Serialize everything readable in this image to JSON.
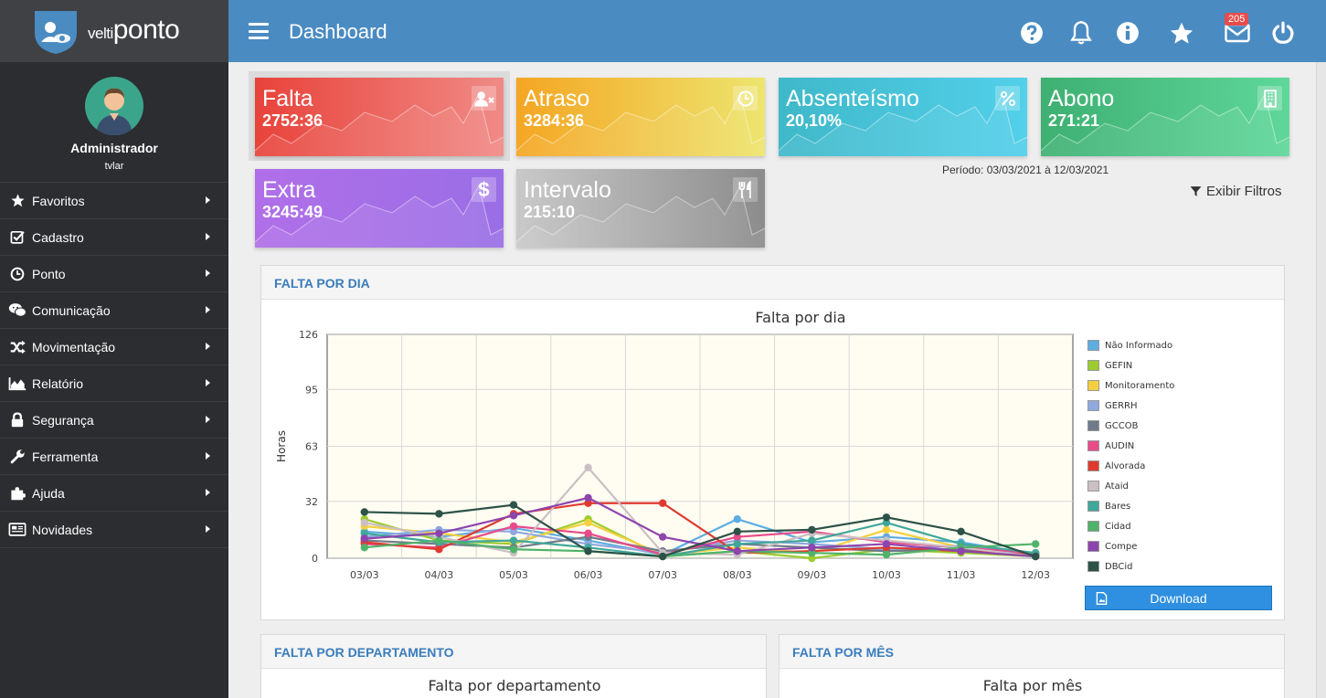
{
  "brand": {
    "prefix": "velti",
    "name": "ponto"
  },
  "user": {
    "name": "Administrador",
    "login": "tvlar"
  },
  "sidebar": {
    "items": [
      {
        "label": "Favoritos",
        "icon": "star-icon"
      },
      {
        "label": "Cadastro",
        "icon": "checkbox-icon"
      },
      {
        "label": "Ponto",
        "icon": "clock-icon"
      },
      {
        "label": "Comunicação",
        "icon": "chat-icon"
      },
      {
        "label": "Movimentação",
        "icon": "shuffle-icon"
      },
      {
        "label": "Relatório",
        "icon": "area-chart-icon"
      },
      {
        "label": "Segurança",
        "icon": "lock-icon"
      },
      {
        "label": "Ferramenta",
        "icon": "wrench-icon"
      },
      {
        "label": "Ajuda",
        "icon": "puzzle-icon"
      },
      {
        "label": "Novidades",
        "icon": "newspaper-icon"
      }
    ]
  },
  "header": {
    "title": "Dashboard",
    "mail_count": "205",
    "icons": [
      "question-icon",
      "bell-icon",
      "info-icon",
      "star-icon",
      "mail-icon",
      "power-icon"
    ]
  },
  "cards": [
    {
      "title": "Falta",
      "value": "2752:36",
      "icon": "user-times-icon",
      "color_from": "#e8433b",
      "color_to": "#f08a86"
    },
    {
      "title": "Atraso",
      "value": "3284:36",
      "icon": "clock-icon",
      "color_from": "#f4a623",
      "color_to": "#ede56e"
    },
    {
      "title": "Absenteísmo",
      "value": "20,10%",
      "icon": "percent-icon",
      "color_from": "#3fb8c9",
      "color_to": "#52d0ea"
    },
    {
      "title": "Abono",
      "value": "271:21",
      "icon": "building-icon",
      "color_from": "#3db072",
      "color_to": "#5fd79a"
    },
    {
      "title": "Extra",
      "value": "3245:49",
      "icon": "dollar-icon",
      "color_from": "#b06fe8",
      "color_to": "#9a6ee6"
    },
    {
      "title": "Intervalo",
      "value": "215:10",
      "icon": "cutlery-icon",
      "color_from": "#c9c9c9",
      "color_to": "#8c8c8c"
    }
  ],
  "periodo": "Período: 03/03/2021 à 12/03/2021",
  "filters_label": "Exibir Filtros",
  "panels": {
    "dia": {
      "heading": "FALTA POR DIA",
      "download": "Download"
    },
    "departamento": {
      "heading": "FALTA POR DEPARTAMENTO",
      "chart_title": "Falta por departamento"
    },
    "mes": {
      "heading": "FALTA POR MÊS",
      "chart_title": "Falta por mês"
    }
  },
  "chart_data": {
    "type": "line",
    "title": "Falta por dia",
    "ylabel": "Horas",
    "xlabel": "",
    "ylim": [
      0,
      126
    ],
    "yticks": [
      0,
      32,
      63,
      95,
      126
    ],
    "x": [
      "03/03",
      "04/03",
      "05/03",
      "06/03",
      "07/03",
      "08/03",
      "09/03",
      "10/03",
      "11/03",
      "12/03"
    ],
    "series": [
      {
        "name": "Não Informado",
        "color": "#5dade2",
        "values": [
          15,
          12,
          17,
          10,
          2,
          22,
          9,
          12,
          9,
          2
        ]
      },
      {
        "name": "GEFIN",
        "color": "#9ccc2e",
        "values": [
          22,
          10,
          8,
          22,
          1,
          4,
          0,
          5,
          3,
          1
        ]
      },
      {
        "name": "Monitoramento",
        "color": "#f4d03f",
        "values": [
          18,
          14,
          9,
          20,
          2,
          6,
          3,
          16,
          6,
          2
        ]
      },
      {
        "name": "GERRH",
        "color": "#8fa8e0",
        "values": [
          12,
          16,
          15,
          8,
          3,
          10,
          8,
          5,
          7,
          2
        ]
      },
      {
        "name": "GCCOB",
        "color": "#6f7a8a",
        "values": [
          10,
          8,
          6,
          12,
          4,
          8,
          6,
          4,
          5,
          1
        ]
      },
      {
        "name": "AUDIN",
        "color": "#e84a8a",
        "values": [
          8,
          6,
          18,
          14,
          2,
          12,
          15,
          9,
          6,
          3
        ]
      },
      {
        "name": "Alvorada",
        "color": "#e03a2f",
        "values": [
          9,
          5,
          25,
          31,
          31,
          3,
          4,
          6,
          4,
          2
        ]
      },
      {
        "name": "Ataid",
        "color": "#cbbfc4",
        "values": [
          20,
          12,
          3,
          51,
          3,
          2,
          14,
          10,
          6,
          1
        ]
      },
      {
        "name": "Bares",
        "color": "#3fa79c",
        "values": [
          14,
          9,
          10,
          6,
          1,
          8,
          10,
          20,
          8,
          3
        ]
      },
      {
        "name": "Cidad",
        "color": "#4fb36a",
        "values": [
          6,
          10,
          5,
          4,
          1,
          4,
          3,
          2,
          6,
          8
        ]
      },
      {
        "name": "Compe",
        "color": "#8e44ad",
        "values": [
          11,
          14,
          24,
          34,
          12,
          4,
          6,
          8,
          4,
          1
        ]
      },
      {
        "name": "DBCid",
        "color": "#2d5248",
        "values": [
          26,
          25,
          30,
          4,
          1,
          15,
          16,
          23,
          15,
          1
        ]
      }
    ]
  }
}
